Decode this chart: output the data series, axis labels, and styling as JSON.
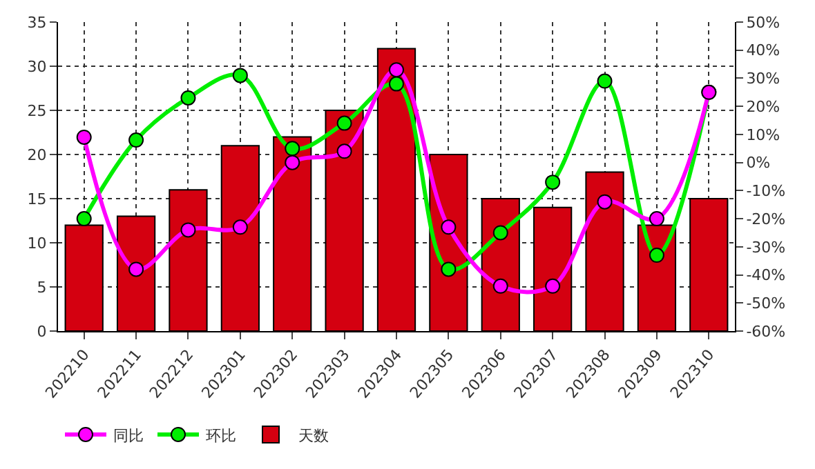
{
  "chart_data": {
    "type": "bar",
    "categories": [
      "202210",
      "202211",
      "202212",
      "202301",
      "202302",
      "202303",
      "202304",
      "202305",
      "202306",
      "202307",
      "202308",
      "202309",
      "202310"
    ],
    "series": [
      {
        "name": "同比",
        "type": "line",
        "axis": "y2",
        "color": "#ff00ff",
        "marker": "circle",
        "values": [
          9,
          -38,
          -24,
          -23,
          0,
          4,
          33,
          -23,
          -44,
          -44,
          -14,
          -20,
          25
        ]
      },
      {
        "name": "环比",
        "type": "line",
        "axis": "y2",
        "color": "#00ee00",
        "marker": "circle",
        "values": [
          -20,
          8,
          23,
          31,
          5,
          14,
          28,
          -38,
          -25,
          -7,
          29,
          -33,
          25
        ]
      },
      {
        "name": "天数",
        "color": "#d40010",
        "values": [
          12,
          13,
          16,
          21,
          22,
          25,
          32,
          20,
          15,
          14,
          18,
          12,
          15
        ]
      }
    ],
    "ylim": [
      0,
      35
    ],
    "yticks": [
      0,
      5,
      10,
      15,
      20,
      25,
      30,
      35
    ],
    "y2lim": [
      -60,
      50
    ],
    "y2ticks": [
      {
        "value": -60,
        "label": "-60%"
      },
      {
        "value": -50,
        "label": "-50%"
      },
      {
        "value": -40,
        "label": "-40%"
      },
      {
        "value": -30,
        "label": "-30%"
      },
      {
        "value": -20,
        "label": "-20%"
      },
      {
        "value": -10,
        "label": "-10%"
      },
      {
        "value": 0,
        "label": "0%"
      },
      {
        "value": 10,
        "label": "10%"
      },
      {
        "value": 20,
        "label": "20%"
      },
      {
        "value": 30,
        "label": "30%"
      },
      {
        "value": 40,
        "label": "40%"
      },
      {
        "value": 50,
        "label": "50%"
      }
    ],
    "grid": true,
    "legend": "bottom left"
  }
}
